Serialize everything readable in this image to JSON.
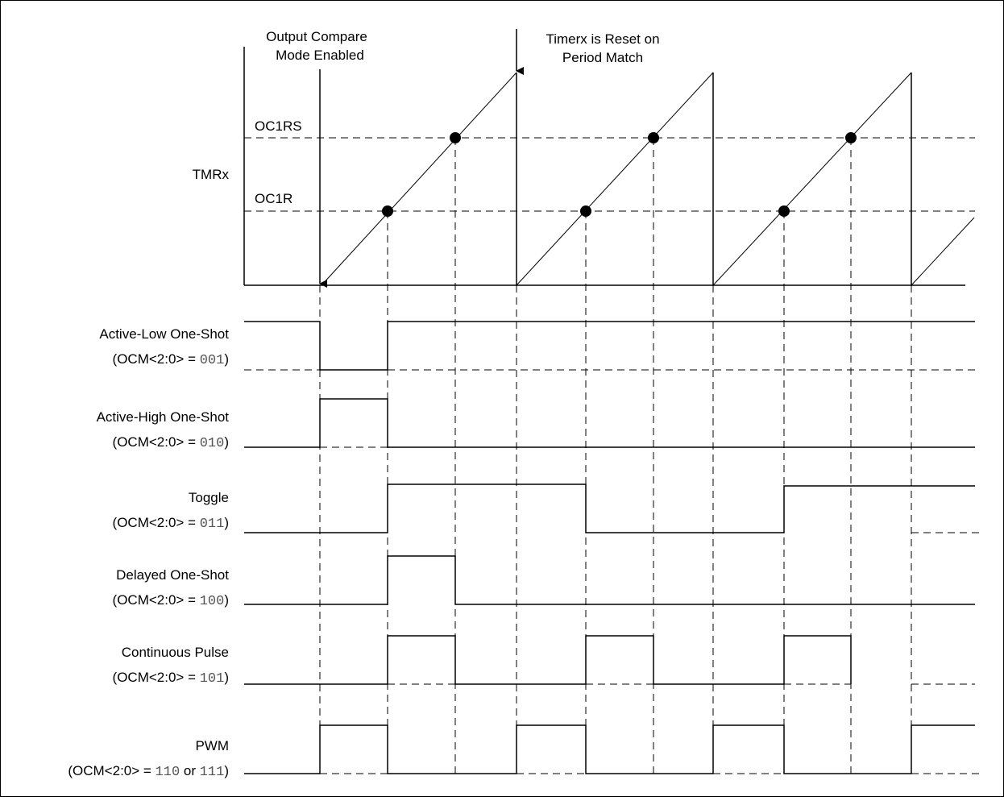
{
  "annotations": {
    "enable": [
      "Output Compare",
      "Mode Enabled"
    ],
    "reset": [
      "Timerx is Reset on",
      "Period Match"
    ]
  },
  "timer": {
    "label": "TMRx",
    "oc1rs_label": "OC1RS",
    "oc1r_label": "OC1R"
  },
  "modes": [
    {
      "name": "Active-Low One-Shot",
      "cfg_prefix": "(OCM<2:0> = ",
      "cfg_code": "001",
      "cfg_suffix": ")"
    },
    {
      "name": "Active-High One-Shot",
      "cfg_prefix": "(OCM<2:0> = ",
      "cfg_code": "010",
      "cfg_suffix": ")"
    },
    {
      "name": "Toggle",
      "cfg_prefix": "(OCM<2:0> = ",
      "cfg_code": "011",
      "cfg_suffix": ")"
    },
    {
      "name": "Delayed One-Shot",
      "cfg_prefix": "(OCM<2:0> = ",
      "cfg_code": "100",
      "cfg_suffix": ")"
    },
    {
      "name": "Continuous Pulse",
      "cfg_prefix": "(OCM<2:0> = ",
      "cfg_code": "101",
      "cfg_suffix": ")"
    },
    {
      "name": "PWM",
      "cfg_prefix": "(OCM<2:0> = ",
      "cfg_code": "110",
      "cfg_mid": " or ",
      "cfg_code2": "111",
      "cfg_suffix": ")"
    }
  ]
}
